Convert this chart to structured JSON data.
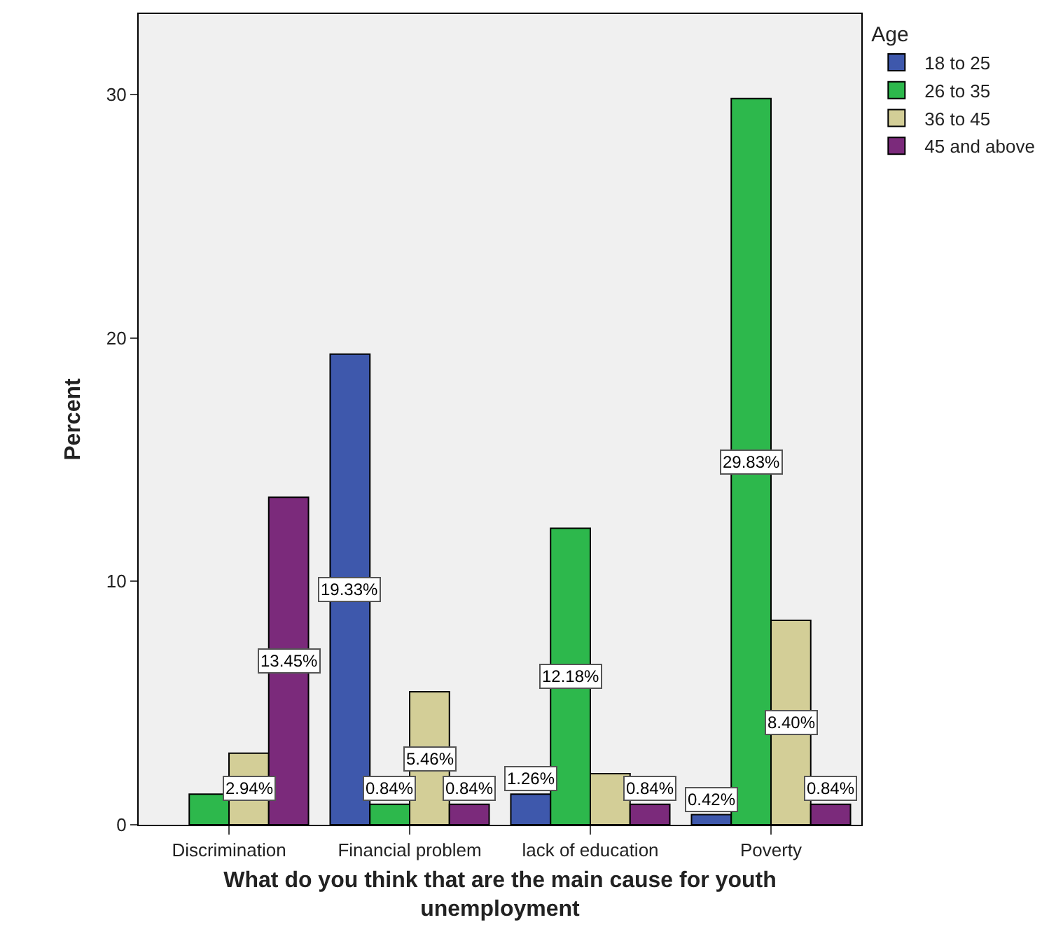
{
  "chart_data": {
    "type": "bar",
    "xlabel": "What do you think that are the main cause for youth unemployment",
    "ylabel": "Percent",
    "legend_title": "Age",
    "categories": [
      "Discrimination",
      "Financial problem",
      "lack of education",
      "Poverty"
    ],
    "series": [
      {
        "name": "18 to 25",
        "color": "#3e58ac",
        "values": [
          null,
          19.33,
          1.26,
          0.42
        ],
        "value_labels": [
          null,
          "19.33%",
          "1.26%",
          "0.42%"
        ]
      },
      {
        "name": "26 to 35",
        "color": "#2db84c",
        "values": [
          1.26,
          0.84,
          12.18,
          29.83
        ],
        "value_labels": [
          null,
          "0.84%",
          "12.18%",
          "29.83%"
        ]
      },
      {
        "name": "36 to 45",
        "color": "#d3ce97",
        "values": [
          2.94,
          5.46,
          2.1,
          8.4
        ],
        "value_labels": [
          "2.94%",
          "5.46%",
          null,
          "8.40%"
        ]
      },
      {
        "name": "45 and above",
        "color": "#7b2a7b",
        "values": [
          13.45,
          0.84,
          0.84,
          0.84
        ],
        "value_labels": [
          "13.45%",
          "0.84%",
          "0.84%",
          "0.84%"
        ]
      }
    ],
    "ylim": [
      0,
      33.3
    ],
    "yticks": [
      0,
      10,
      20,
      30
    ],
    "grid": false,
    "legend": "top right"
  }
}
